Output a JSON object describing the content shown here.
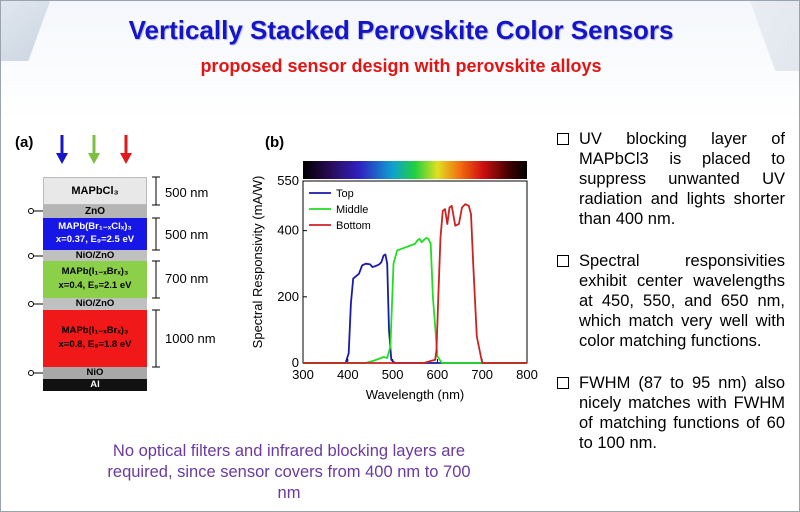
{
  "title": "Vertically Stacked Perovskite Color Sensors",
  "subtitle": "proposed sensor design with perovskite alloys",
  "panel_a": {
    "label": "(a)",
    "arrow_colors": [
      "#1616c8",
      "#7cc042",
      "#e01a1a"
    ],
    "layers": [
      {
        "text": "MAPbCl₃",
        "sub": "",
        "color": "#e8e8e8"
      },
      {
        "text": "ZnO",
        "sub": "",
        "color": "#b5b5b5"
      },
      {
        "text": "MAPb(Br₁₋ₓClₓ)₃",
        "sub": "x=0.37, E₉=2.5 eV",
        "color": "#1616e6"
      },
      {
        "text": "NiO/ZnO",
        "sub": "",
        "color": "#c0c0c0"
      },
      {
        "text": "MAPb(I₁₋ₓBrₓ)₃",
        "sub": "x=0.4, E₉=2.1 eV",
        "color": "#8cd04a"
      },
      {
        "text": "NiO/ZnO",
        "sub": "",
        "color": "#c0c0c0"
      },
      {
        "text": "MAPb(I₁₋ₓBrₓ)₃",
        "sub": "x=0.8, E₉=1.8 eV",
        "color": "#f01818"
      },
      {
        "text": "NiO",
        "sub": "",
        "color": "#a8a8a8"
      },
      {
        "text": "Al",
        "sub": "",
        "color": "#111111"
      }
    ],
    "dimensions": [
      "500 nm",
      "500 nm",
      "700 nm",
      "1000 nm"
    ]
  },
  "panel_b": {
    "label": "(b)"
  },
  "chart_data": {
    "type": "line",
    "xlabel": "Wavelength (nm)",
    "ylabel": "Spectral Responsivity (mA/W)",
    "xlim": [
      300,
      800
    ],
    "ylim": [
      0,
      550
    ],
    "xticks": [
      300,
      400,
      500,
      600,
      700,
      800
    ],
    "yticks": [
      0,
      200,
      400,
      550
    ],
    "legend_placement": "top-left",
    "series": [
      {
        "name": "Top",
        "color": "#1a1aaa",
        "x": [
          300,
          395,
          402,
          407,
          412,
          418,
          425,
          432,
          440,
          450,
          455,
          460,
          470,
          475,
          480,
          484,
          488,
          492,
          497,
          505,
          800
        ],
        "y": [
          0,
          0,
          30,
          180,
          255,
          262,
          270,
          295,
          300,
          298,
          290,
          292,
          298,
          305,
          325,
          328,
          300,
          100,
          10,
          0,
          0
        ]
      },
      {
        "name": "Middle",
        "color": "#22dd22",
        "x": [
          300,
          440,
          460,
          480,
          488,
          495,
          502,
          510,
          520,
          540,
          550,
          555,
          560,
          565,
          575,
          580,
          585,
          590,
          600,
          610,
          800
        ],
        "y": [
          0,
          0,
          8,
          18,
          15,
          50,
          300,
          340,
          345,
          355,
          360,
          370,
          375,
          365,
          378,
          375,
          360,
          200,
          20,
          0,
          0
        ]
      },
      {
        "name": "Bottom",
        "color": "#cc2222",
        "x": [
          300,
          570,
          585,
          595,
          598,
          602,
          607,
          612,
          617,
          622,
          627,
          632,
          640,
          648,
          655,
          662,
          670,
          675,
          680,
          688,
          700,
          800
        ],
        "y": [
          0,
          0,
          6,
          10,
          40,
          200,
          380,
          460,
          465,
          420,
          470,
          475,
          415,
          420,
          470,
          480,
          475,
          450,
          300,
          80,
          0,
          0
        ]
      }
    ]
  },
  "bullets": [
    "UV blocking layer of MAPbCl3 is placed to suppress unwanted UV radiation and lights shorter than 400 nm.",
    "Spectral responsivities exhibit center wavelengths at 450, 550, and 650 nm, which match very well with color matching functions.",
    "FWHM (87 to 95 nm) also nicely matches with FWHM of matching functions of 60 to 100 nm."
  ],
  "note": "No optical filters and infrared blocking layers are required, since sensor covers from 400  nm to 700 nm"
}
